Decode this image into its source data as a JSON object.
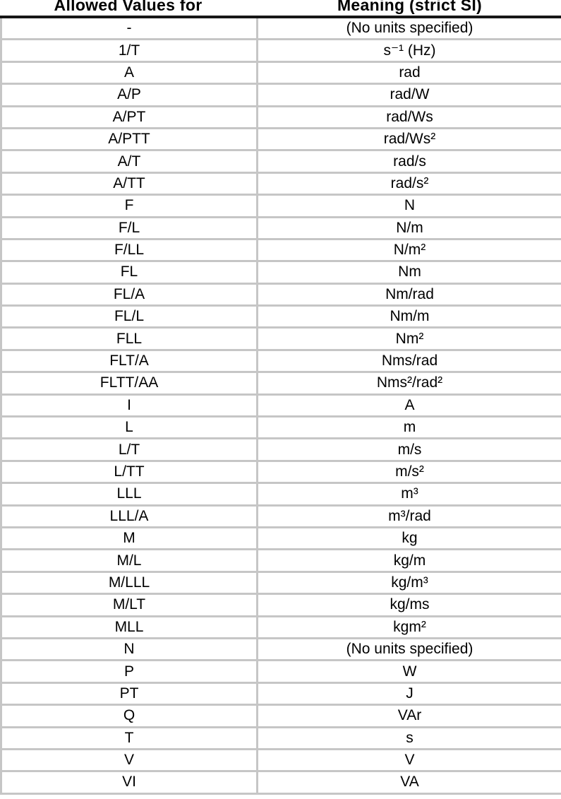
{
  "header": {
    "col1": "Allowed Values for",
    "col2": "Meaning (strict SI)"
  },
  "colors": {
    "grid_line": "#c6c6c6",
    "header_rule": "#161616",
    "text": "#000000",
    "background": "#ffffff"
  },
  "table": {
    "rows": [
      {
        "value": "-",
        "meaning": "(No units specified)"
      },
      {
        "value": "1/T",
        "meaning": "s⁻¹ (Hz)"
      },
      {
        "value": "A",
        "meaning": "rad"
      },
      {
        "value": "A/P",
        "meaning": "rad/W"
      },
      {
        "value": "A/PT",
        "meaning": "rad/Ws"
      },
      {
        "value": "A/PTT",
        "meaning": "rad/Ws²"
      },
      {
        "value": "A/T",
        "meaning": "rad/s"
      },
      {
        "value": "A/TT",
        "meaning": "rad/s²"
      },
      {
        "value": "F",
        "meaning": "N"
      },
      {
        "value": "F/L",
        "meaning": "N/m"
      },
      {
        "value": "F/LL",
        "meaning": "N/m²"
      },
      {
        "value": "FL",
        "meaning": "Nm"
      },
      {
        "value": "FL/A",
        "meaning": "Nm/rad"
      },
      {
        "value": "FL/L",
        "meaning": "Nm/m"
      },
      {
        "value": "FLL",
        "meaning": "Nm²"
      },
      {
        "value": "FLT/A",
        "meaning": "Nms/rad"
      },
      {
        "value": "FLTT/AA",
        "meaning": "Nms²/rad²"
      },
      {
        "value": "I",
        "meaning": "A"
      },
      {
        "value": "L",
        "meaning": "m"
      },
      {
        "value": "L/T",
        "meaning": "m/s"
      },
      {
        "value": "L/TT",
        "meaning": "m/s²"
      },
      {
        "value": "LLL",
        "meaning": "m³"
      },
      {
        "value": "LLL/A",
        "meaning": "m³/rad"
      },
      {
        "value": "M",
        "meaning": "kg"
      },
      {
        "value": "M/L",
        "meaning": "kg/m"
      },
      {
        "value": "M/LLL",
        "meaning": "kg/m³"
      },
      {
        "value": "M/LT",
        "meaning": "kg/ms"
      },
      {
        "value": "MLL",
        "meaning": "kgm²"
      },
      {
        "value": "N",
        "meaning": "(No units specified)"
      },
      {
        "value": "P",
        "meaning": "W"
      },
      {
        "value": "PT",
        "meaning": "J"
      },
      {
        "value": "Q",
        "meaning": "VAr"
      },
      {
        "value": "T",
        "meaning": "s"
      },
      {
        "value": "V",
        "meaning": "V"
      },
      {
        "value": "VI",
        "meaning": "VA"
      }
    ]
  }
}
